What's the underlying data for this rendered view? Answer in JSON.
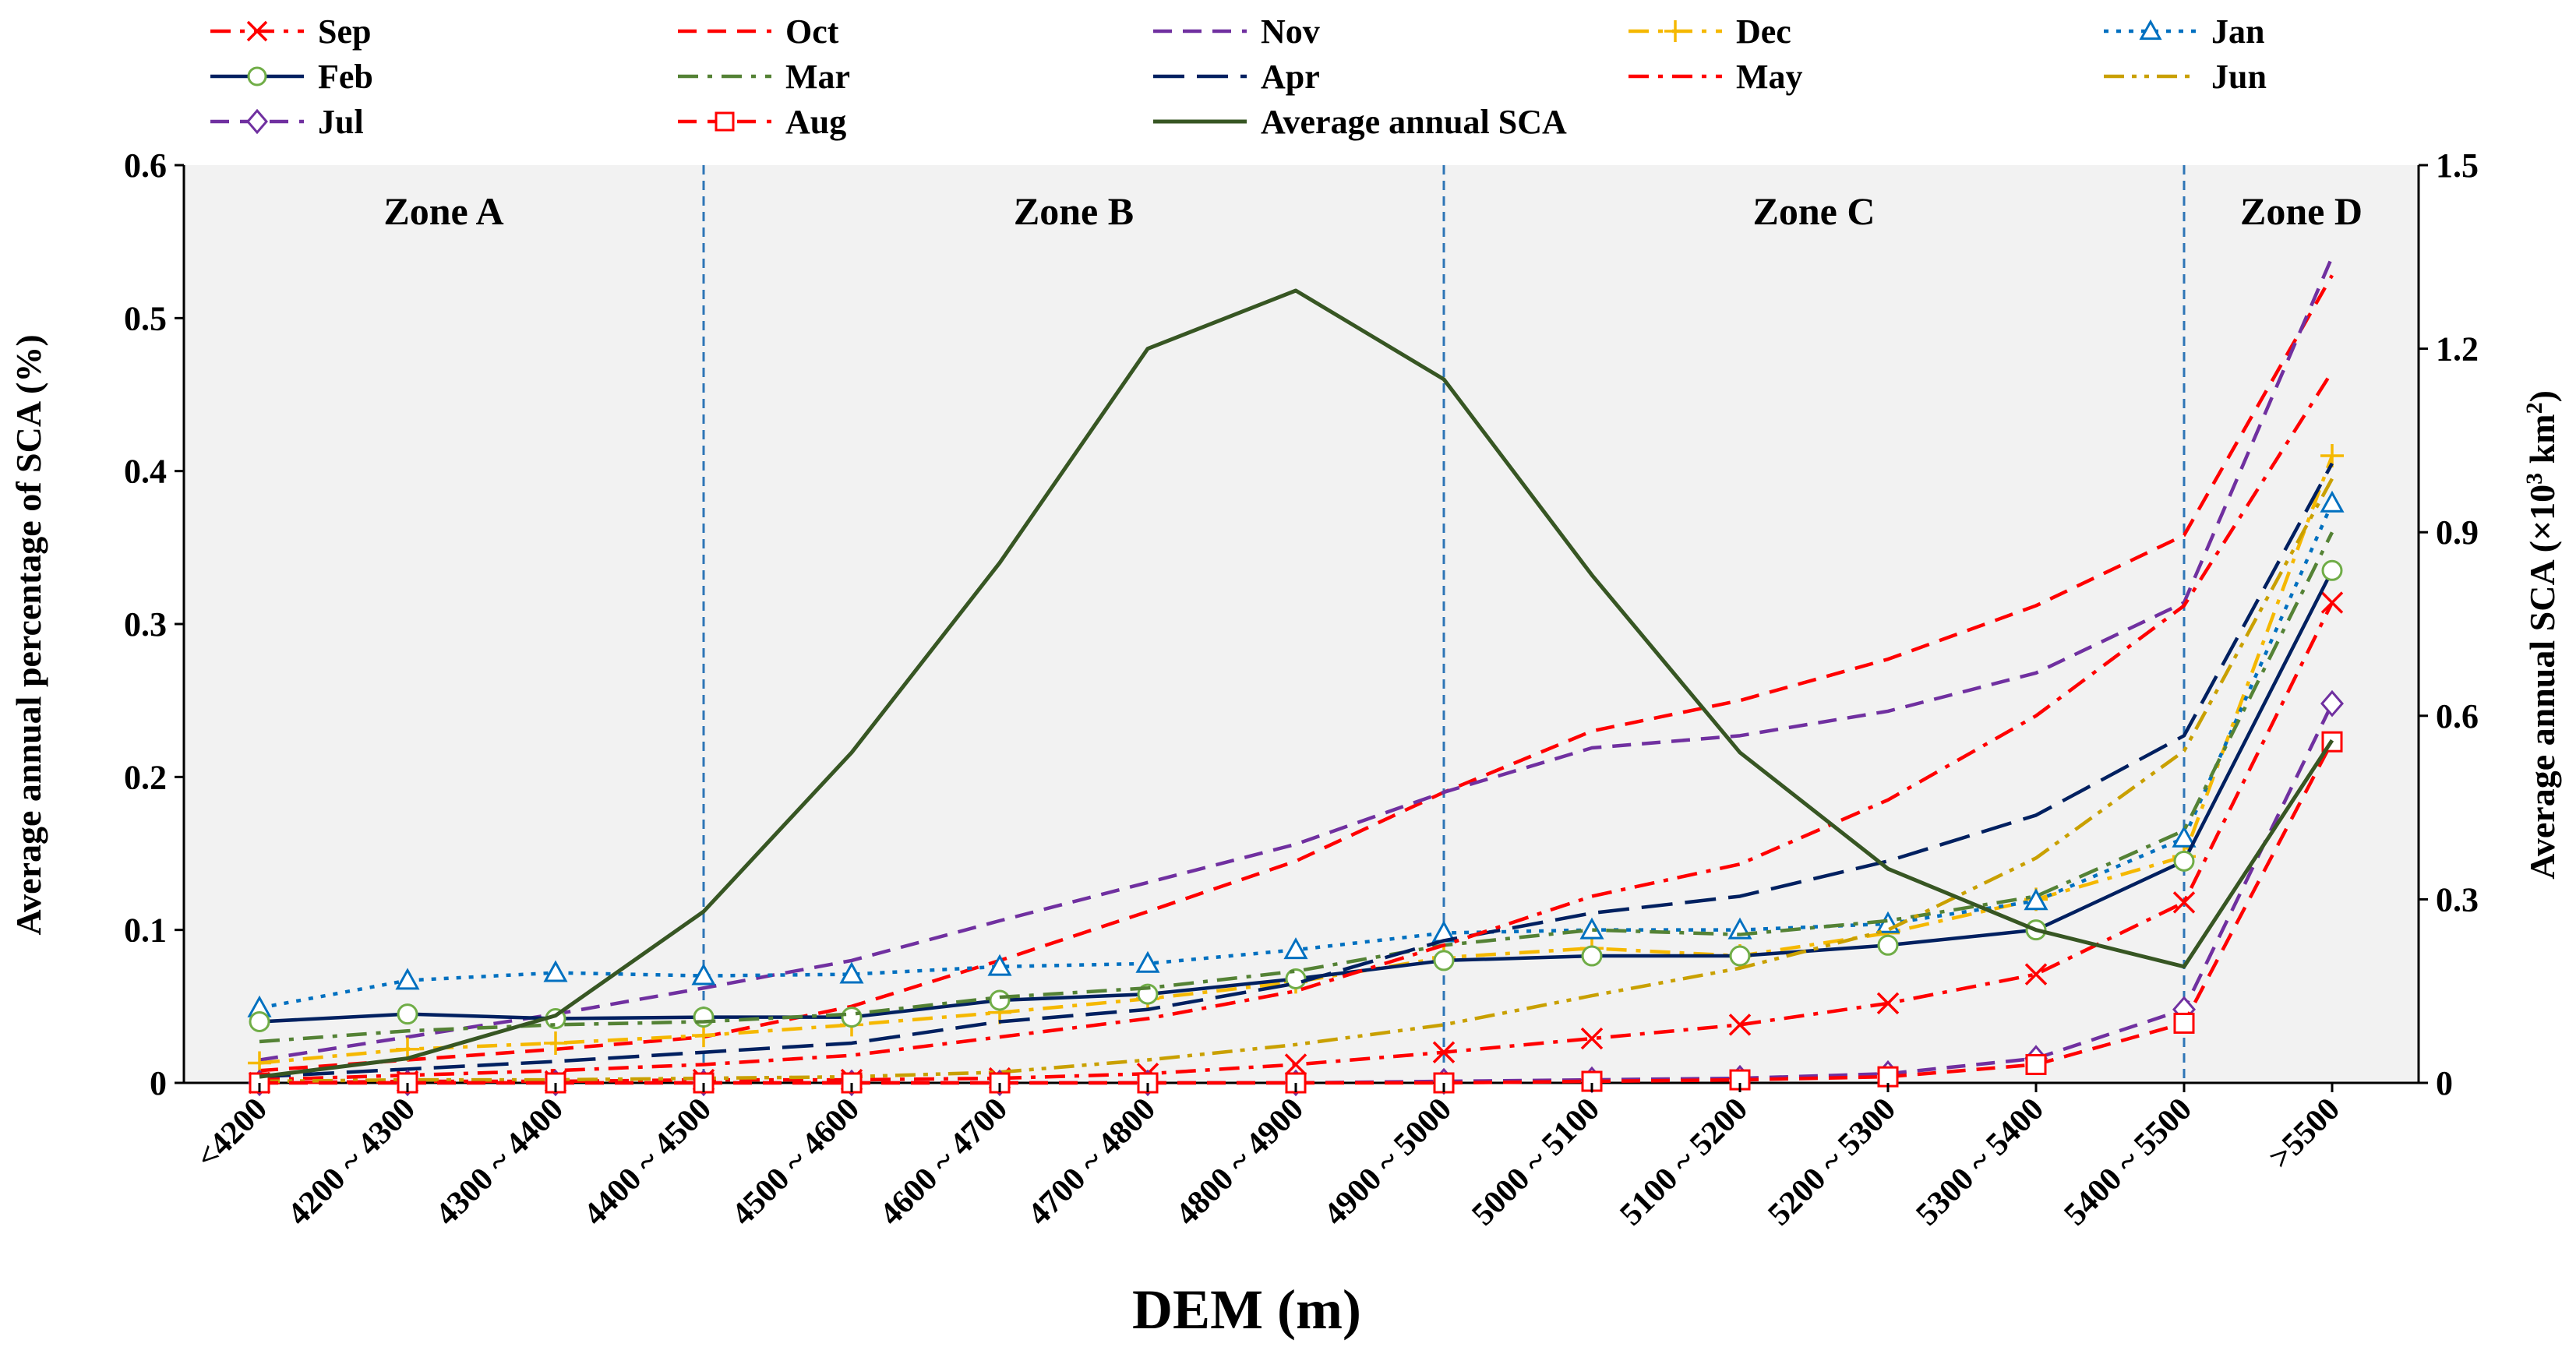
{
  "chart_data": {
    "type": "line",
    "title": "",
    "xlabel": "DEM (m)",
    "ylabel": "Average annual percentage of SCA  (%)",
    "ylabel_right_main": "Average annual SCA (×10",
    "ylabel_right_sup": "3",
    "ylabel_right_unit": " km",
    "ylabel_right_sup2": "2",
    "ylabel_right_close": ")",
    "categories": [
      "<4200",
      "4200 ~ 4300",
      "4300 ~ 4400",
      "4400 ~ 4500",
      "4500 ~ 4600",
      "4600 ~ 4700",
      "4700 ~ 4800",
      "4800 ~ 4900",
      "4900 ~ 5000",
      "5000 ~ 5100",
      "5100 ~ 5200",
      "5200 ~ 5300",
      "5300 ~ 5400",
      "5400 ~ 5500",
      ">5500"
    ],
    "ylim": [
      0,
      0.6
    ],
    "yticks": [
      "0",
      "0.1",
      "0.2",
      "0.3",
      "0.4",
      "0.5",
      "0.6"
    ],
    "y2lim": [
      0,
      1.5
    ],
    "y2ticks": [
      "0",
      "0.3",
      "0.6",
      "0.9",
      "1.2",
      "1.5"
    ],
    "grid": false,
    "legend_position": "top",
    "plot_background": "#f2f2f2",
    "zones": [
      {
        "label": "Zone A",
        "from": 0,
        "to": 3
      },
      {
        "label": "Zone B",
        "from": 3,
        "to": 8
      },
      {
        "label": "Zone C",
        "from": 8,
        "to": 13
      },
      {
        "label": "Zone D",
        "from": 13,
        "to": 14
      }
    ],
    "zone_divider_color": "#2e75b6",
    "series": [
      {
        "name": "Sep",
        "color": "#ff0000",
        "dash": "dashdot",
        "marker": "x",
        "axis": "left",
        "values": [
          0.0,
          0.001,
          0.001,
          0.002,
          0.002,
          0.003,
          0.006,
          0.012,
          0.02,
          0.029,
          0.038,
          0.052,
          0.071,
          0.118,
          0.314
        ]
      },
      {
        "name": "Oct",
        "color": "#ff0000",
        "dash": "dash",
        "marker": "none",
        "axis": "left",
        "values": [
          0.008,
          0.015,
          0.022,
          0.03,
          0.05,
          0.08,
          0.112,
          0.145,
          0.19,
          0.23,
          0.25,
          0.277,
          0.312,
          0.358,
          0.528
        ]
      },
      {
        "name": "Nov",
        "color": "#7030a0",
        "dash": "dash",
        "marker": "none",
        "axis": "left",
        "values": [
          0.015,
          0.03,
          0.045,
          0.062,
          0.08,
          0.106,
          0.131,
          0.156,
          0.19,
          0.219,
          0.227,
          0.243,
          0.268,
          0.314,
          0.54
        ]
      },
      {
        "name": "Dec",
        "color": "#f5b800",
        "dash": "dashdot",
        "marker": "plus",
        "axis": "left",
        "values": [
          0.013,
          0.022,
          0.026,
          0.031,
          0.038,
          0.046,
          0.055,
          0.066,
          0.082,
          0.088,
          0.083,
          0.098,
          0.12,
          0.148,
          0.41
        ]
      },
      {
        "name": "Jan",
        "color": "#0070c0",
        "dash": "dot",
        "marker": "triangle",
        "axis": "left",
        "values": [
          0.049,
          0.067,
          0.072,
          0.07,
          0.071,
          0.076,
          0.078,
          0.087,
          0.098,
          0.1,
          0.1,
          0.104,
          0.119,
          0.16,
          0.379
        ]
      },
      {
        "name": "Feb",
        "color": "#002060",
        "dash": "solid",
        "marker": "circle",
        "axis": "left",
        "marker_color": "#70ad47",
        "values": [
          0.04,
          0.045,
          0.042,
          0.043,
          0.043,
          0.054,
          0.058,
          0.068,
          0.08,
          0.083,
          0.083,
          0.09,
          0.1,
          0.145,
          0.335
        ]
      },
      {
        "name": "Mar",
        "color": "#548235",
        "dash": "dashdot",
        "marker": "none",
        "axis": "left",
        "values": [
          0.027,
          0.034,
          0.038,
          0.04,
          0.045,
          0.056,
          0.062,
          0.073,
          0.09,
          0.1,
          0.097,
          0.106,
          0.122,
          0.165,
          0.36
        ]
      },
      {
        "name": "Apr",
        "color": "#002060",
        "dash": "longdash",
        "marker": "none",
        "axis": "left",
        "values": [
          0.004,
          0.009,
          0.014,
          0.02,
          0.026,
          0.04,
          0.048,
          0.065,
          0.093,
          0.111,
          0.122,
          0.145,
          0.175,
          0.227,
          0.405
        ]
      },
      {
        "name": "May",
        "color": "#ff0000",
        "dash": "dashdot",
        "marker": "none",
        "axis": "left",
        "values": [
          0.002,
          0.005,
          0.008,
          0.012,
          0.018,
          0.03,
          0.042,
          0.06,
          0.09,
          0.122,
          0.143,
          0.185,
          0.24,
          0.312,
          0.465
        ]
      },
      {
        "name": "Jun",
        "color": "#c9a000",
        "dash": "dashdotdot",
        "marker": "none",
        "axis": "left",
        "values": [
          0.001,
          0.002,
          0.002,
          0.003,
          0.004,
          0.007,
          0.015,
          0.025,
          0.038,
          0.057,
          0.075,
          0.1,
          0.147,
          0.217,
          0.395
        ]
      },
      {
        "name": "Jul",
        "color": "#7030a0",
        "dash": "dash",
        "marker": "diamond",
        "axis": "left",
        "values": [
          0.0,
          0.0,
          0.0,
          0.0,
          0.0,
          0.0,
          0.0,
          0.0,
          0.001,
          0.002,
          0.003,
          0.006,
          0.016,
          0.048,
          0.248
        ]
      },
      {
        "name": "Aug",
        "color": "#ff0000",
        "dash": "dash",
        "marker": "square",
        "axis": "left",
        "values": [
          0.0,
          0.0,
          0.0,
          0.0,
          0.0,
          0.0,
          0.0,
          0.0,
          0.0,
          0.001,
          0.002,
          0.004,
          0.012,
          0.039,
          0.223
        ]
      },
      {
        "name": "Average annual SCA",
        "color": "#375623",
        "dash": "solid",
        "marker": "none",
        "axis": "right",
        "values": [
          0.01,
          0.04,
          0.11,
          0.28,
          0.54,
          0.85,
          1.2,
          1.295,
          1.15,
          0.83,
          0.54,
          0.35,
          0.25,
          0.19,
          0.56
        ]
      }
    ]
  }
}
